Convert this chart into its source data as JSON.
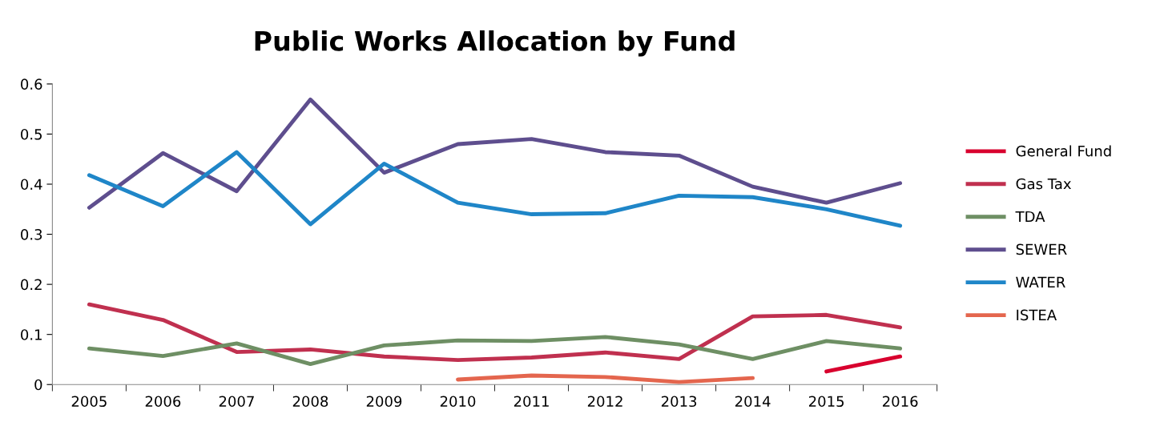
{
  "chart_data": {
    "type": "line",
    "title": "Public Works Allocation by Fund",
    "categories": [
      "2005",
      "2006",
      "2007",
      "2008",
      "2009",
      "2010",
      "2011",
      "2012",
      "2013",
      "2014",
      "2015",
      "2016"
    ],
    "series": [
      {
        "name": "General Fund",
        "color": "#d8002e",
        "values": [
          null,
          null,
          null,
          null,
          null,
          null,
          null,
          null,
          null,
          null,
          0.026,
          0.056
        ]
      },
      {
        "name": "Gas Tax",
        "color": "#c0304f",
        "values": [
          0.16,
          0.129,
          0.065,
          0.07,
          0.056,
          0.049,
          0.054,
          0.064,
          0.051,
          0.136,
          0.139,
          0.114
        ]
      },
      {
        "name": "TDA",
        "color": "#6e8f64",
        "values": [
          0.072,
          0.057,
          0.082,
          0.041,
          0.078,
          0.088,
          0.087,
          0.095,
          0.08,
          0.051,
          0.087,
          0.072
        ]
      },
      {
        "name": "SEWER",
        "color": "#5e4e8e",
        "values": [
          0.353,
          0.462,
          0.386,
          0.569,
          0.423,
          0.48,
          0.49,
          0.464,
          0.457,
          0.395,
          0.363,
          0.402
        ]
      },
      {
        "name": "WATER",
        "color": "#1f86c8",
        "values": [
          0.418,
          0.356,
          0.464,
          0.32,
          0.441,
          0.363,
          0.34,
          0.342,
          0.377,
          0.374,
          0.35,
          0.317
        ]
      },
      {
        "name": "ISTEA",
        "color": "#e4664e",
        "values": [
          null,
          null,
          null,
          null,
          null,
          0.01,
          0.018,
          0.015,
          0.005,
          0.013,
          null,
          null
        ]
      }
    ],
    "ylim": [
      0,
      0.6
    ],
    "yticks": [
      0,
      0.1,
      0.2,
      0.3,
      0.4,
      0.5,
      0.6
    ],
    "legend": "right",
    "marker": "none",
    "line_style": "solid"
  }
}
